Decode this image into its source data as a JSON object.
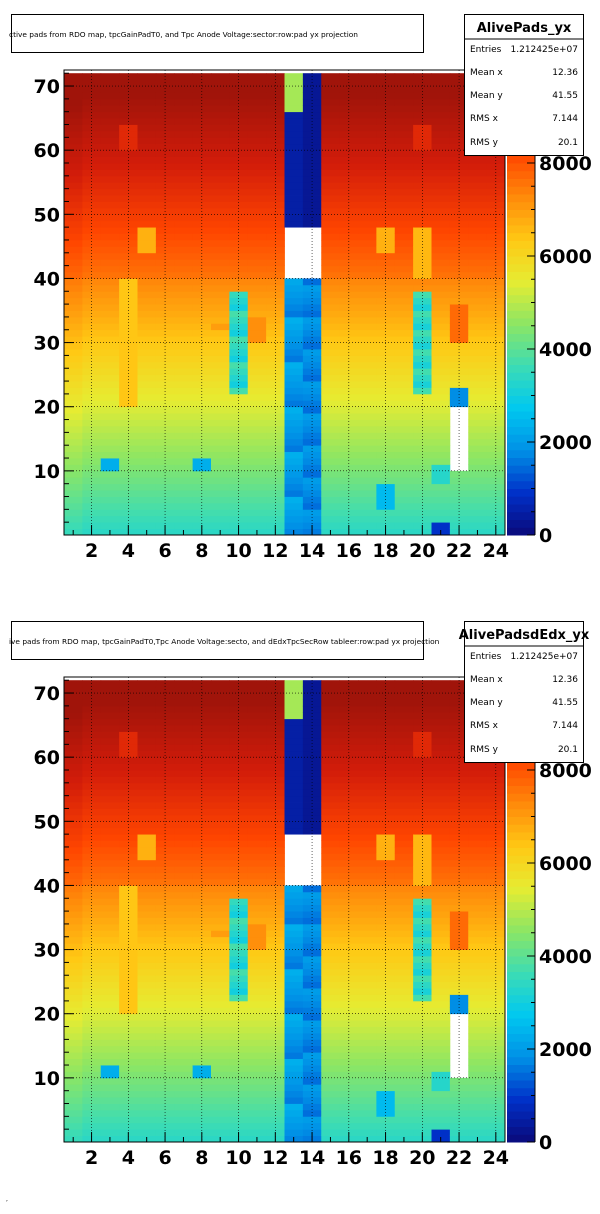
{
  "panels": [
    {
      "title": "ctive pads from RDO map, tpcGainPadT0, and Tpc Anode Voltage:sector:row:pad yx projection",
      "stats": {
        "name": "AlivePads_yx",
        "rows": [
          {
            "label": "Entries",
            "value": "1.212425e+07"
          },
          {
            "label": "Mean x",
            "value": "12.36"
          },
          {
            "label": "Mean y",
            "value": "41.55"
          },
          {
            "label": "RMS x",
            "value": "7.144"
          },
          {
            "label": "RMS y",
            "value": "20.1"
          }
        ]
      }
    },
    {
      "title": "ive pads from RDO map, tpcGainPadT0,Tpc Anode Voltage:secto, and dEdxTpcSecRow tableer:row:pad yx projection",
      "stats": {
        "name": "AlivePadsdEdx_yx",
        "rows": [
          {
            "label": "Entries",
            "value": "1.212425e+07"
          },
          {
            "label": "Mean x",
            "value": "12.36"
          },
          {
            "label": "Mean y",
            "value": "41.55"
          },
          {
            "label": "RMS x",
            "value": "7.144"
          },
          {
            "label": "RMS y",
            "value": "20.1"
          }
        ]
      }
    }
  ],
  "footer_mark": ",",
  "chart_data": [
    {
      "type": "heatmap",
      "name": "AlivePads_yx",
      "x_range": [
        0.5,
        24.5
      ],
      "y_range": [
        0,
        72.5
      ],
      "x_ticks": [
        "2",
        "4",
        "6",
        "8",
        "10",
        "12",
        "14",
        "16",
        "18",
        "20",
        "22",
        "24"
      ],
      "y_ticks": [
        "10",
        "20",
        "30",
        "40",
        "50",
        "60",
        "70"
      ],
      "z_range": [
        0,
        10000
      ],
      "z_ticks": [
        "0",
        "2000",
        "4000",
        "6000",
        "8000"
      ],
      "grid": true,
      "palette": [
        "#0a0a7a",
        "#0030c8",
        "#0090e6",
        "#00c8f0",
        "#3cdcb4",
        "#8ce664",
        "#e6ec32",
        "#ffc814",
        "#ff8a0a",
        "#ff4600",
        "#d21c0a",
        "#a0140a"
      ]
    },
    {
      "type": "heatmap",
      "name": "AlivePadsdEdx_yx",
      "x_range": [
        0.5,
        24.5
      ],
      "y_range": [
        0,
        72.5
      ],
      "x_ticks": [
        "2",
        "4",
        "6",
        "8",
        "10",
        "12",
        "14",
        "16",
        "18",
        "20",
        "22",
        "24"
      ],
      "y_ticks": [
        "10",
        "20",
        "30",
        "40",
        "50",
        "60",
        "70"
      ],
      "z_range": [
        0,
        10000
      ],
      "z_ticks": [
        "0",
        "2000",
        "4000",
        "6000",
        "8000"
      ],
      "grid": true,
      "palette": [
        "#0a0a7a",
        "#0030c8",
        "#0090e6",
        "#00c8f0",
        "#3cdcb4",
        "#8ce664",
        "#e6ec32",
        "#ffc814",
        "#ff8a0a",
        "#ff4600",
        "#d21c0a",
        "#a0140a"
      ]
    }
  ]
}
